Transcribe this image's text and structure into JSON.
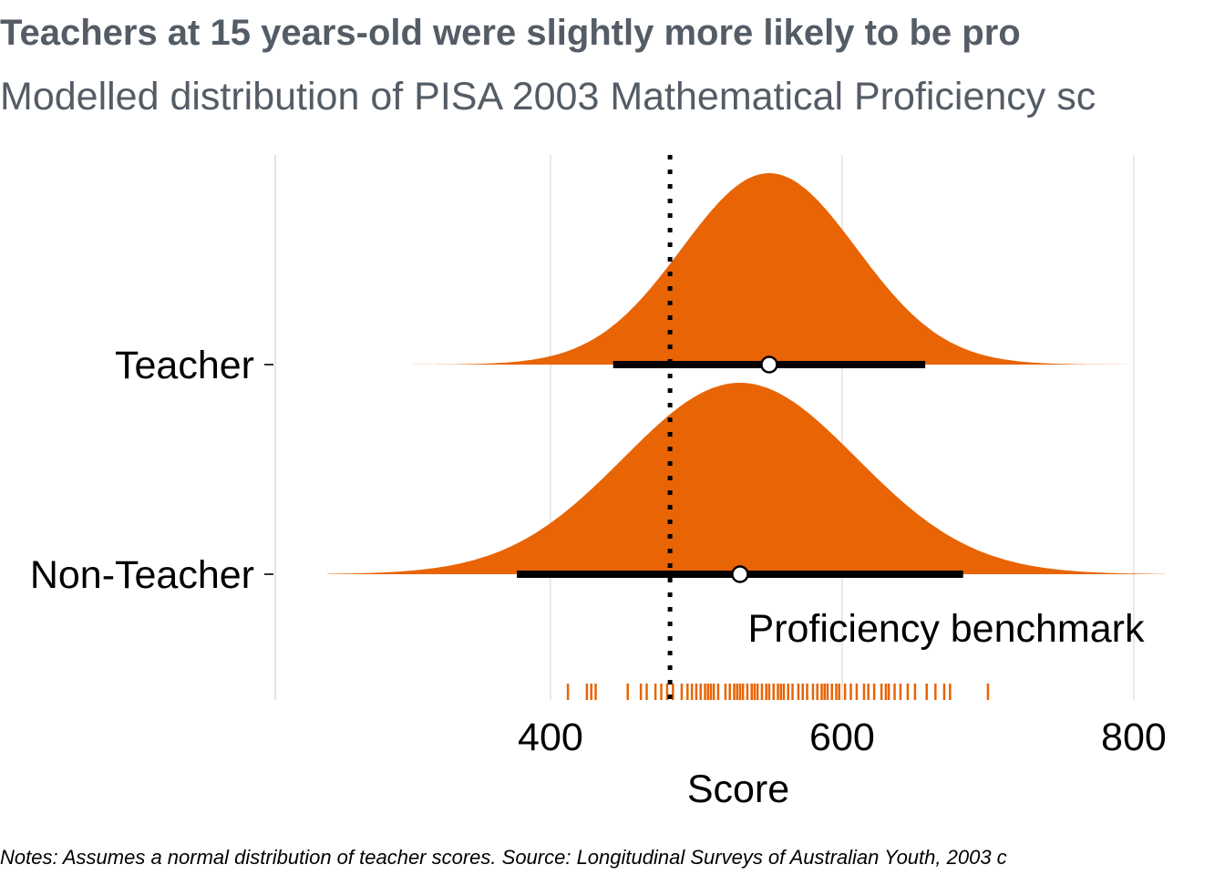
{
  "title": "Teachers at 15 years-old were slightly more likely to be pro",
  "subtitle": "Modelled distribution of PISA 2003 Mathematical Proficiency sc",
  "notes": "Notes: Assumes a normal distribution of teacher scores. Source: Longitudinal Surveys of Australian Youth, 2003 c",
  "colors": {
    "fill": "#e86405",
    "interval": "#000000",
    "point_fill": "#ffffff",
    "grid": "#d3d3d3",
    "text_muted": "#545c66"
  },
  "chart_data": {
    "type": "halfeye-density",
    "xlabel": "Score",
    "ylabel": "",
    "xlim": [
      220,
      830
    ],
    "x_ticks": [
      400,
      600,
      800
    ],
    "grid": "vertical major gridlines",
    "categories": [
      "Teacher",
      "Non-Teacher"
    ],
    "series": [
      {
        "name": "Teacher",
        "mean": 550,
        "sd": 60,
        "interval": [
          443,
          657
        ],
        "density_range": [
          290,
          820
        ]
      },
      {
        "name": "Non-Teacher",
        "mean": 530,
        "sd": 80,
        "interval": [
          377,
          683
        ],
        "density_range": [
          247,
          822
        ]
      }
    ],
    "benchmark": {
      "value": 482,
      "label": "Proficiency benchmark"
    },
    "rug": [
      412,
      425,
      428,
      431,
      453,
      462,
      466,
      472,
      476,
      480,
      484,
      490,
      494,
      497,
      500,
      503,
      506,
      508,
      510,
      512,
      515,
      520,
      523,
      526,
      528,
      530,
      532,
      535,
      538,
      540,
      542,
      545,
      548,
      550,
      553,
      556,
      558,
      560,
      563,
      566,
      570,
      573,
      576,
      580,
      583,
      586,
      588,
      590,
      593,
      596,
      598,
      602,
      606,
      610,
      615,
      618,
      622,
      627,
      630,
      632,
      636,
      640,
      645,
      650,
      658,
      664,
      670,
      674,
      700
    ]
  }
}
